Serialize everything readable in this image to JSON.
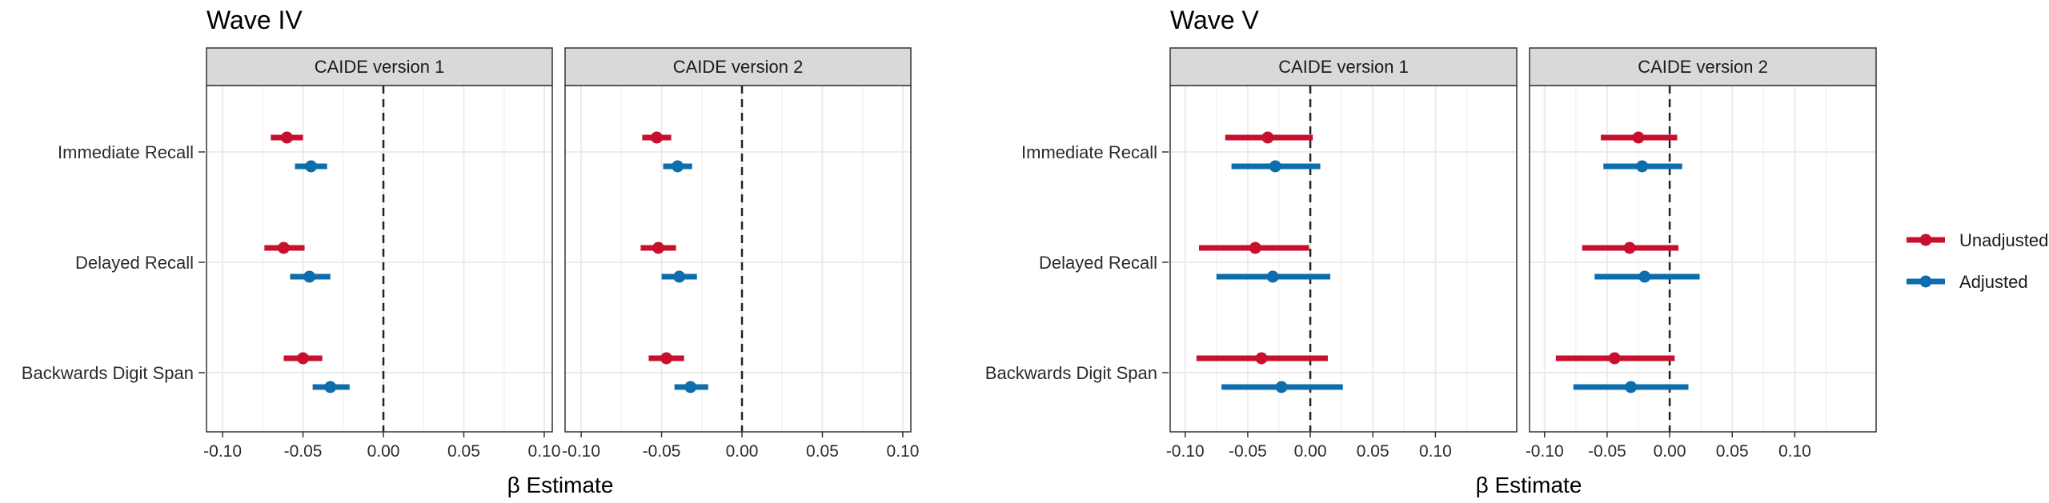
{
  "chart_data": {
    "type": "forest",
    "panel_groups": [
      {
        "title": "Wave IV",
        "xlabel": "β Estimate",
        "xlim": [
          -0.11,
          0.105
        ],
        "ticks": [
          -0.1,
          -0.05,
          0.0,
          0.05,
          0.1
        ],
        "tick_labels": [
          "-0.10",
          "-0.05",
          "0.00",
          "0.05",
          "0.10"
        ],
        "facets": [
          {
            "label": "CAIDE version 1",
            "rows": [
              {
                "outcome": "Immediate Recall",
                "series": "Unadjusted",
                "estimate": -0.06,
                "lower": -0.07,
                "upper": -0.05
              },
              {
                "outcome": "Immediate Recall",
                "series": "Adjusted",
                "estimate": -0.045,
                "lower": -0.055,
                "upper": -0.035
              },
              {
                "outcome": "Delayed Recall",
                "series": "Unadjusted",
                "estimate": -0.062,
                "lower": -0.074,
                "upper": -0.049
              },
              {
                "outcome": "Delayed Recall",
                "series": "Adjusted",
                "estimate": -0.046,
                "lower": -0.058,
                "upper": -0.033
              },
              {
                "outcome": "Backwards Digit Span",
                "series": "Unadjusted",
                "estimate": -0.05,
                "lower": -0.062,
                "upper": -0.038
              },
              {
                "outcome": "Backwards Digit Span",
                "series": "Adjusted",
                "estimate": -0.033,
                "lower": -0.044,
                "upper": -0.021
              }
            ]
          },
          {
            "label": "CAIDE version 2",
            "rows": [
              {
                "outcome": "Immediate Recall",
                "series": "Unadjusted",
                "estimate": -0.053,
                "lower": -0.062,
                "upper": -0.044
              },
              {
                "outcome": "Immediate Recall",
                "series": "Adjusted",
                "estimate": -0.04,
                "lower": -0.049,
                "upper": -0.031
              },
              {
                "outcome": "Delayed Recall",
                "series": "Unadjusted",
                "estimate": -0.052,
                "lower": -0.063,
                "upper": -0.041
              },
              {
                "outcome": "Delayed Recall",
                "series": "Adjusted",
                "estimate": -0.039,
                "lower": -0.05,
                "upper": -0.028
              },
              {
                "outcome": "Backwards Digit Span",
                "series": "Unadjusted",
                "estimate": -0.047,
                "lower": -0.058,
                "upper": -0.036
              },
              {
                "outcome": "Backwards Digit Span",
                "series": "Adjusted",
                "estimate": -0.032,
                "lower": -0.042,
                "upper": -0.021
              }
            ]
          }
        ]
      },
      {
        "title": "Wave V",
        "xlabel": "β Estimate",
        "xlim": [
          -0.112,
          0.165
        ],
        "ticks": [
          -0.1,
          -0.05,
          0.0,
          0.05,
          0.1
        ],
        "tick_labels": [
          "-0.10",
          "-0.05",
          "0.00",
          "0.05",
          "0.10"
        ],
        "facets": [
          {
            "label": "CAIDE version 1",
            "rows": [
              {
                "outcome": "Immediate Recall",
                "series": "Unadjusted",
                "estimate": -0.034,
                "lower": -0.068,
                "upper": 0.002
              },
              {
                "outcome": "Immediate Recall",
                "series": "Adjusted",
                "estimate": -0.028,
                "lower": -0.063,
                "upper": 0.008
              },
              {
                "outcome": "Delayed Recall",
                "series": "Unadjusted",
                "estimate": -0.044,
                "lower": -0.089,
                "upper": -0.001
              },
              {
                "outcome": "Delayed Recall",
                "series": "Adjusted",
                "estimate": -0.03,
                "lower": -0.075,
                "upper": 0.016
              },
              {
                "outcome": "Backwards Digit Span",
                "series": "Unadjusted",
                "estimate": -0.039,
                "lower": -0.091,
                "upper": 0.014
              },
              {
                "outcome": "Backwards Digit Span",
                "series": "Adjusted",
                "estimate": -0.023,
                "lower": -0.071,
                "upper": 0.026
              }
            ]
          },
          {
            "label": "CAIDE version 2",
            "rows": [
              {
                "outcome": "Immediate Recall",
                "series": "Unadjusted",
                "estimate": -0.025,
                "lower": -0.055,
                "upper": 0.006
              },
              {
                "outcome": "Immediate Recall",
                "series": "Adjusted",
                "estimate": -0.022,
                "lower": -0.053,
                "upper": 0.01
              },
              {
                "outcome": "Delayed Recall",
                "series": "Unadjusted",
                "estimate": -0.032,
                "lower": -0.07,
                "upper": 0.007
              },
              {
                "outcome": "Delayed Recall",
                "series": "Adjusted",
                "estimate": -0.02,
                "lower": -0.06,
                "upper": 0.024
              },
              {
                "outcome": "Backwards Digit Span",
                "series": "Unadjusted",
                "estimate": -0.044,
                "lower": -0.091,
                "upper": 0.004
              },
              {
                "outcome": "Backwards Digit Span",
                "series": "Adjusted",
                "estimate": -0.031,
                "lower": -0.077,
                "upper": 0.015
              }
            ]
          }
        ]
      }
    ],
    "outcomes": [
      "Immediate Recall",
      "Delayed Recall",
      "Backwards Digit Span"
    ],
    "series": [
      {
        "name": "Unadjusted",
        "color": "#c8102e"
      },
      {
        "name": "Adjusted",
        "color": "#0d6dad"
      }
    ],
    "reference_line": 0.0,
    "legend_position": "right"
  }
}
